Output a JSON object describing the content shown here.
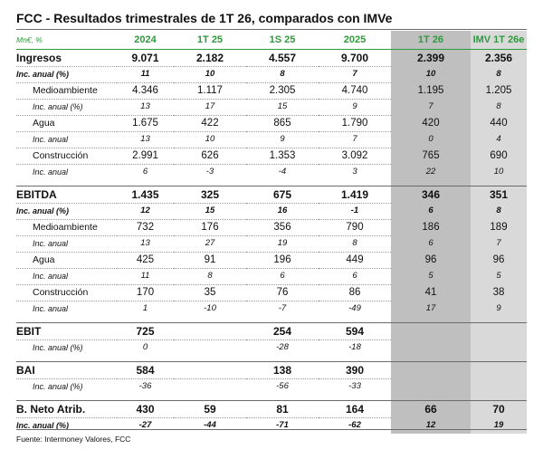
{
  "title": "FCC - Resultados trimestrales de 1T 26, comparados con IMVe",
  "header": [
    "Mn€, %",
    "2024",
    "1T 25",
    "1S 25",
    "2025",
    "1T 26",
    "IMV 1T 26e"
  ],
  "sections": [
    {
      "rows": [
        {
          "kind": "main",
          "cells": [
            "Ingresos",
            "9.071",
            "2.182",
            "4.557",
            "9.700",
            "2.399",
            "2.356"
          ]
        },
        {
          "kind": "pctb",
          "cells": [
            "Inc. anual (%)",
            "11",
            "10",
            "8",
            "7",
            "10",
            "8"
          ]
        },
        {
          "kind": "sub",
          "cells": [
            "Medioambiente",
            "4.346",
            "1.117",
            "2.305",
            "4.740",
            "1.195",
            "1.205"
          ]
        },
        {
          "kind": "pct",
          "cells": [
            "Inc. anual (%)",
            "13",
            "17",
            "15",
            "9",
            "7",
            "8"
          ]
        },
        {
          "kind": "sub",
          "cells": [
            "Agua",
            "1.675",
            "422",
            "865",
            "1.790",
            "420",
            "440"
          ]
        },
        {
          "kind": "pct",
          "cells": [
            "Inc. anual",
            "13",
            "10",
            "9",
            "7",
            "0",
            "4"
          ]
        },
        {
          "kind": "sub",
          "cells": [
            "Construcción",
            "2.991",
            "626",
            "1.353",
            "3.092",
            "765",
            "690"
          ]
        },
        {
          "kind": "pct",
          "cells": [
            "Inc. anual",
            "6",
            "-3",
            "-4",
            "3",
            "22",
            "10"
          ]
        }
      ]
    },
    {
      "rows": [
        {
          "kind": "main",
          "cells": [
            "EBITDA",
            "1.435",
            "325",
            "675",
            "1.419",
            "346",
            "351"
          ]
        },
        {
          "kind": "pctb",
          "cells": [
            "Inc. anual (%)",
            "12",
            "15",
            "16",
            "-1",
            "6",
            "8"
          ]
        },
        {
          "kind": "sub",
          "cells": [
            "Medioambiente",
            "732",
            "176",
            "356",
            "790",
            "186",
            "189"
          ]
        },
        {
          "kind": "pct",
          "cells": [
            "Inc. anual",
            "13",
            "27",
            "19",
            "8",
            "6",
            "7"
          ]
        },
        {
          "kind": "sub",
          "cells": [
            "Agua",
            "425",
            "91",
            "196",
            "449",
            "96",
            "96"
          ]
        },
        {
          "kind": "pct",
          "cells": [
            "Inc. anual",
            "11",
            "8",
            "6",
            "6",
            "5",
            "5"
          ]
        },
        {
          "kind": "sub",
          "cells": [
            "Construcción",
            "170",
            "35",
            "76",
            "86",
            "41",
            "38"
          ]
        },
        {
          "kind": "pct",
          "cells": [
            "Inc. anual",
            "1",
            "-10",
            "-7",
            "-49",
            "17",
            "9"
          ]
        }
      ]
    },
    {
      "rows": [
        {
          "kind": "main",
          "cells": [
            "EBIT",
            "725",
            "",
            "254",
            "594",
            "",
            ""
          ]
        },
        {
          "kind": "pct",
          "cells": [
            "Inc. anual (%)",
            "0",
            "",
            "-28",
            "-18",
            "",
            ""
          ]
        }
      ]
    },
    {
      "rows": [
        {
          "kind": "main",
          "cells": [
            "BAI",
            "584",
            "",
            "138",
            "390",
            "",
            ""
          ]
        },
        {
          "kind": "pct",
          "cells": [
            "Inc. anual (%)",
            "-36",
            "",
            "-56",
            "-33",
            "",
            ""
          ]
        }
      ]
    },
    {
      "rows": [
        {
          "kind": "main",
          "cells": [
            "B. Neto Atrib.",
            "430",
            "59",
            "81",
            "164",
            "66",
            "70"
          ]
        },
        {
          "kind": "pctb",
          "cells": [
            "Inc. anual (%)",
            "-27",
            "-44",
            "-71",
            "-62",
            "12",
            "19"
          ]
        }
      ]
    }
  ],
  "footer": "Fuente: Intermoney Valores, FCC",
  "colors": {
    "header_green": "#2e9a3c",
    "shade_dark": "#bfbfbf",
    "shade_light": "#d9d9d9"
  }
}
